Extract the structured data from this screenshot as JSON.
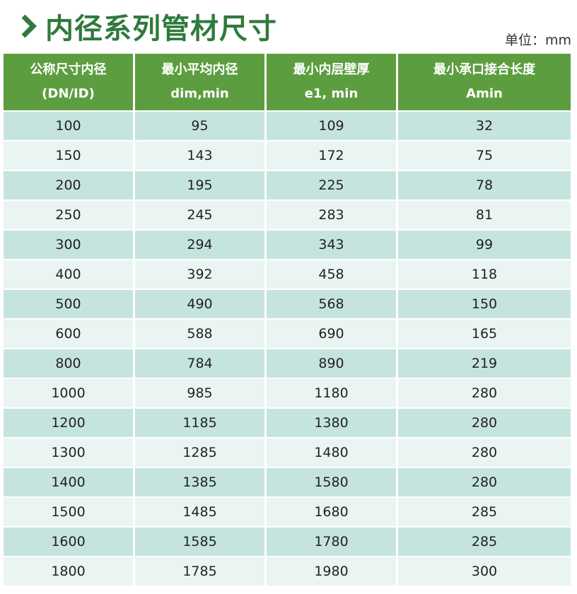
{
  "title": "内径系列管材尺寸",
  "title_icon": "chevron-right-icon",
  "unit": "单位：mm",
  "colors": {
    "title": "#2f7a3c",
    "header_bg": "#5c9e3f",
    "row_odd": "#c6e4de",
    "row_even": "#eaf5f3"
  },
  "columns": [
    {
      "line1": "公称尺寸内径",
      "line2": "(DN/ID)"
    },
    {
      "line1": "最小平均内径",
      "line2": "dim,min"
    },
    {
      "line1": "最小内层壁厚",
      "line2": "e1, min"
    },
    {
      "line1": "最小承口接合长度",
      "line2": "Amin"
    }
  ],
  "rows": [
    [
      "100",
      "95",
      "109",
      "32"
    ],
    [
      "150",
      "143",
      "172",
      "75"
    ],
    [
      "200",
      "195",
      "225",
      "78"
    ],
    [
      "250",
      "245",
      "283",
      "81"
    ],
    [
      "300",
      "294",
      "343",
      "99"
    ],
    [
      "400",
      "392",
      "458",
      "118"
    ],
    [
      "500",
      "490",
      "568",
      "150"
    ],
    [
      "600",
      "588",
      "690",
      "165"
    ],
    [
      "800",
      "784",
      "890",
      "219"
    ],
    [
      "1000",
      "985",
      "1180",
      "280"
    ],
    [
      "1200",
      "1185",
      "1380",
      "280"
    ],
    [
      "1300",
      "1285",
      "1480",
      "280"
    ],
    [
      "1400",
      "1385",
      "1580",
      "280"
    ],
    [
      "1500",
      "1485",
      "1680",
      "285"
    ],
    [
      "1600",
      "1585",
      "1780",
      "285"
    ],
    [
      "1800",
      "1785",
      "1980",
      "300"
    ]
  ]
}
